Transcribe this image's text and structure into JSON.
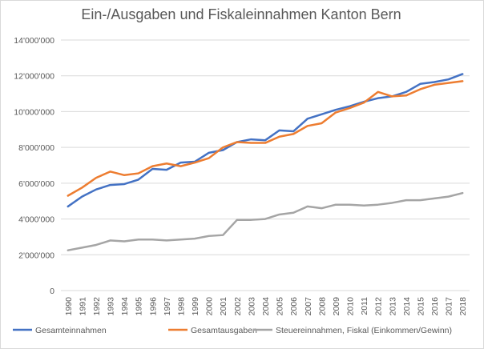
{
  "chart_data": {
    "type": "line",
    "title": "Ein-/Ausgaben und Fiskaleinnahmen Kanton Bern",
    "xlabel": "",
    "ylabel": "",
    "ylim": [
      0,
      14000000
    ],
    "y_ticks": [
      0,
      2000000,
      4000000,
      6000000,
      8000000,
      10000000,
      12000000,
      14000000
    ],
    "y_tick_labels": [
      "0",
      "2'000'000",
      "4'000'000",
      "6'000'000",
      "8'000'000",
      "10'000'000",
      "12'000'000",
      "14'000'000"
    ],
    "categories": [
      "1990",
      "1991",
      "1992",
      "1993",
      "1994",
      "1995",
      "1996",
      "1997",
      "1998",
      "1999",
      "2000",
      "2001",
      "2002",
      "2003",
      "2004",
      "2005",
      "2006",
      "2007",
      "2008",
      "2009",
      "2010",
      "2011",
      "2012",
      "2013",
      "2014",
      "2015",
      "2016",
      "2017",
      "2018"
    ],
    "grid": true,
    "legend_position": "bottom",
    "series": [
      {
        "name": "Gesamteinnahmen",
        "color": "#4472c4",
        "values": [
          4700000,
          5250000,
          5650000,
          5900000,
          5950000,
          6200000,
          6800000,
          6750000,
          7150000,
          7200000,
          7700000,
          7850000,
          8300000,
          8450000,
          8400000,
          8950000,
          8900000,
          9600000,
          9850000,
          10100000,
          10300000,
          10550000,
          10750000,
          10850000,
          11100000,
          11550000,
          11650000,
          11800000,
          12100000
        ]
      },
      {
        "name": "Gesamtausgaben",
        "color": "#ed7d31",
        "values": [
          5300000,
          5750000,
          6300000,
          6650000,
          6450000,
          6550000,
          6950000,
          7100000,
          6950000,
          7150000,
          7400000,
          8000000,
          8300000,
          8250000,
          8250000,
          8600000,
          8750000,
          9200000,
          9350000,
          9950000,
          10200000,
          10500000,
          11100000,
          10850000,
          10900000,
          11250000,
          11500000,
          11600000,
          11700000
        ]
      },
      {
        "name": "Steuereinnahmen, Fiskal (Einkommen/Gewinn)",
        "color": "#a5a5a5",
        "values": [
          2250000,
          2400000,
          2550000,
          2800000,
          2750000,
          2850000,
          2850000,
          2800000,
          2850000,
          2900000,
          3050000,
          3100000,
          3950000,
          3950000,
          4000000,
          4250000,
          4350000,
          4700000,
          4600000,
          4800000,
          4800000,
          4750000,
          4800000,
          4900000,
          5050000,
          5050000,
          5150000,
          5250000,
          5450000
        ]
      }
    ]
  }
}
